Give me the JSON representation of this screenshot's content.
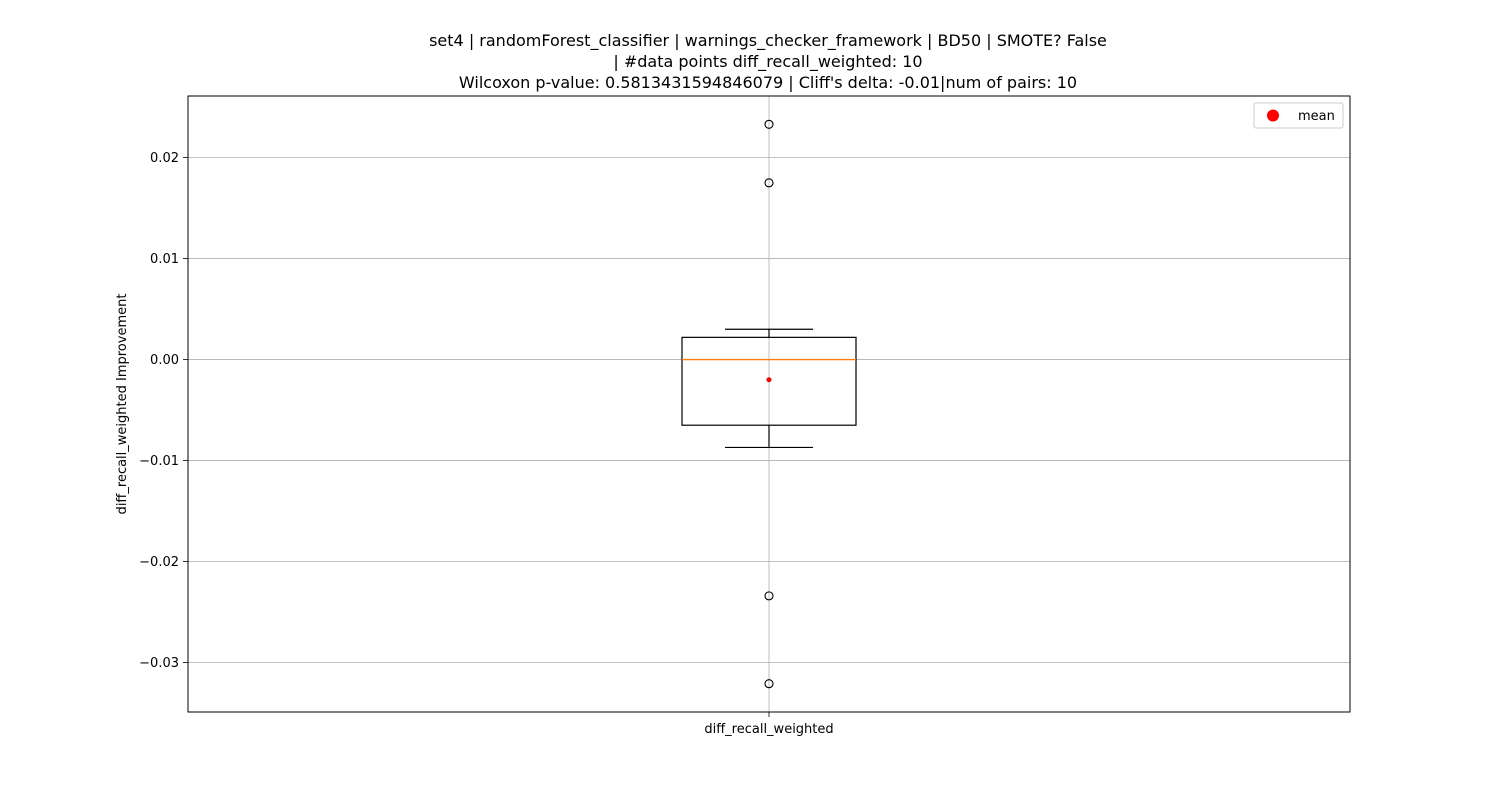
{
  "chart_data": {
    "type": "box",
    "title": [
      "set4 | randomForest_classifier | warnings_checker_framework | BD50 | SMOTE? False",
      "| #data points diff_recall_weighted: 10",
      "Wilcoxon p-value: 0.5813431594846079 | Cliff's delta: -0.01|num of pairs: 10"
    ],
    "xlabel": "",
    "ylabel": "diff_recall_weighted Improvement",
    "categories": [
      "diff_recall_weighted"
    ],
    "ylim": [
      -0.0349,
      0.0261
    ],
    "yticks": [
      0.02,
      0.01,
      0.0,
      -0.01,
      -0.02,
      -0.03
    ],
    "ytick_labels": [
      "0.02",
      "0.01",
      "0.00",
      "−0.01",
      "−0.02",
      "−0.03"
    ],
    "grid": true,
    "legend": {
      "position": "top-right",
      "entries": [
        {
          "label": "mean",
          "color": "#ff0000"
        }
      ]
    },
    "box": {
      "q1": -0.0065,
      "median": 0.0,
      "q3": 0.0022,
      "whisker_low": -0.0087,
      "whisker_high": 0.003,
      "mean": -0.002,
      "outliers": [
        0.0233,
        0.0175,
        -0.0234,
        -0.0321
      ]
    },
    "colors": {
      "box": "#000000",
      "median": "#ff7f0e",
      "mean": "#ff0000",
      "grid": "#b0b0b0"
    }
  }
}
